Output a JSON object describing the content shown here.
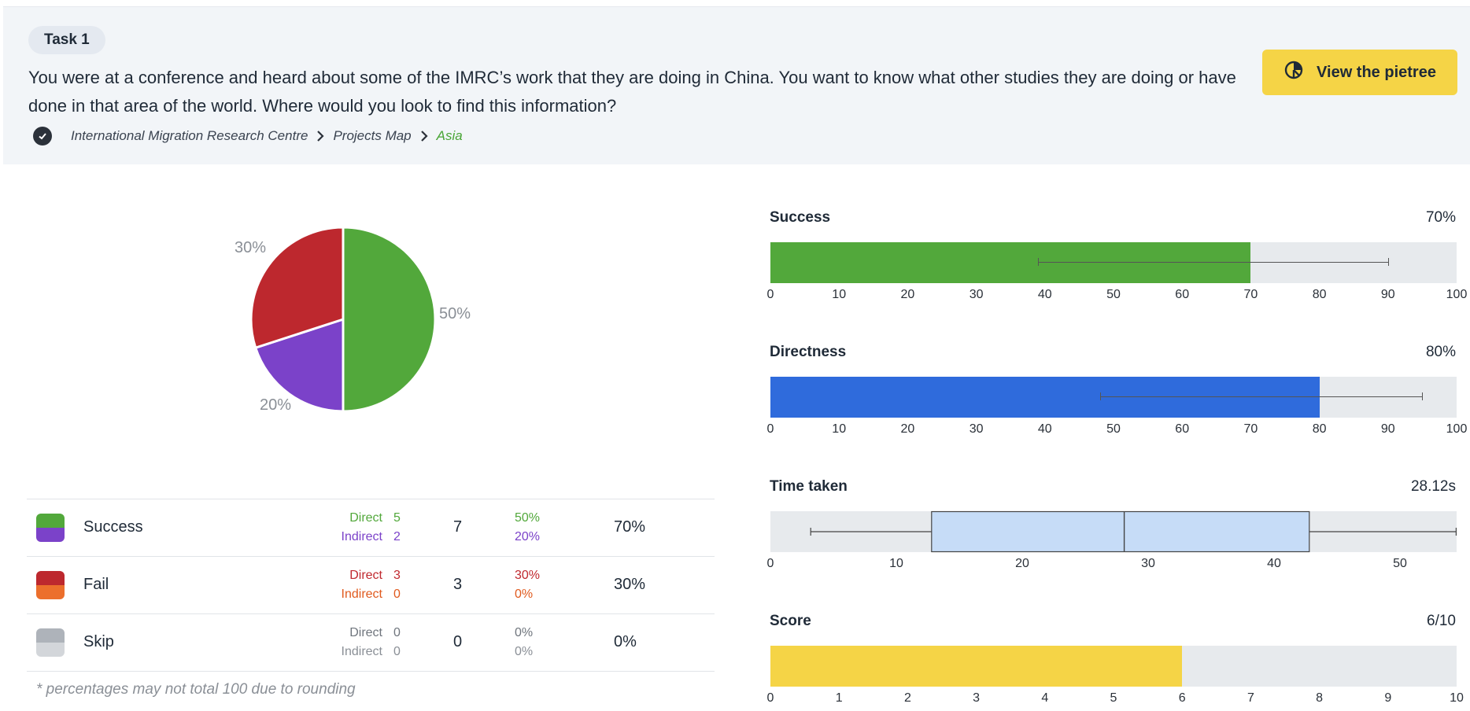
{
  "task": {
    "label": "Task 1",
    "question": "You were at a conference and heard about some of the IMRC’s work that they are doing in China. You want to know what other studies they are doing or have done in that area of the world. Where would you look to find this information?",
    "button_label": "View the pietree",
    "breadcrumb": [
      "International Migration Research Centre",
      "Projects Map",
      "Asia"
    ]
  },
  "colors": {
    "success": "#52a83b",
    "indirect_success": "#7b42c9",
    "fail": "#bd282e",
    "indirect_fail": "#ec6f2c",
    "skip": "#aeb3ba",
    "indirect_skip": "#d3d6da",
    "directness": "#2f6bdc",
    "time_box": "#c6dcf7",
    "score": "#f5d446",
    "track": "#e7eaed"
  },
  "results_table": {
    "rows": [
      {
        "label": "Success",
        "direct_label": "Direct",
        "indirect_label": "Indirect",
        "direct": "5",
        "indirect": "2",
        "total": "7",
        "direct_pct": "50%",
        "indirect_pct": "20%",
        "overall": "70%",
        "direct_color": "#52a83b",
        "indirect_color": "#7b42c9"
      },
      {
        "label": "Fail",
        "direct_label": "Direct",
        "indirect_label": "Indirect",
        "direct": "3",
        "indirect": "0",
        "total": "3",
        "direct_pct": "30%",
        "indirect_pct": "0%",
        "overall": "30%",
        "direct_color": "#c0292f",
        "indirect_color": "#e05a1e"
      },
      {
        "label": "Skip",
        "direct_label": "Direct",
        "indirect_label": "Indirect",
        "direct": "0",
        "indirect": "0",
        "total": "0",
        "direct_pct": "0%",
        "indirect_pct": "0%",
        "overall": "0%",
        "direct_color": "#6f757d",
        "indirect_color": "#8a8f96"
      }
    ],
    "footnote": "* percentages may not total 100 due to rounding"
  },
  "chart_data": [
    {
      "type": "pie",
      "slices": [
        {
          "label": "50%",
          "value": 50,
          "color": "#52a83b"
        },
        {
          "label": "20%",
          "value": 20,
          "color": "#7b42c9"
        },
        {
          "label": "30%",
          "value": 30,
          "color": "#bd282e"
        }
      ]
    },
    {
      "type": "bar",
      "title": "Success",
      "display_value": "70%",
      "value": 70,
      "xlim": [
        0,
        100
      ],
      "ticks": [
        "0",
        "10",
        "20",
        "30",
        "40",
        "50",
        "60",
        "70",
        "80",
        "90",
        "100"
      ],
      "error_bar": [
        39,
        90
      ],
      "color": "#52a83b"
    },
    {
      "type": "bar",
      "title": "Directness",
      "display_value": "80%",
      "value": 80,
      "xlim": [
        0,
        100
      ],
      "ticks": [
        "0",
        "10",
        "20",
        "30",
        "40",
        "50",
        "60",
        "70",
        "80",
        "90",
        "100"
      ],
      "error_bar": [
        48,
        95
      ],
      "color": "#2f6bdc"
    },
    {
      "type": "box",
      "title": "Time taken",
      "display_value": "28.12s",
      "xlim": [
        0,
        54.5
      ],
      "ticks": [
        "0",
        "10",
        "20",
        "30",
        "40",
        "50"
      ],
      "tick_values": [
        0,
        10,
        20,
        30,
        40,
        50
      ],
      "whisker_low": 3.2,
      "q1": 12.8,
      "median": 28.1,
      "q3": 42.8,
      "whisker_high": 54.5,
      "color": "#c6dcf7"
    },
    {
      "type": "bar",
      "title": "Score",
      "display_value": "6/10",
      "value": 6,
      "xlim": [
        0,
        10
      ],
      "ticks": [
        "0",
        "1",
        "2",
        "3",
        "4",
        "5",
        "6",
        "7",
        "8",
        "9",
        "10"
      ],
      "color": "#f5d446"
    }
  ]
}
